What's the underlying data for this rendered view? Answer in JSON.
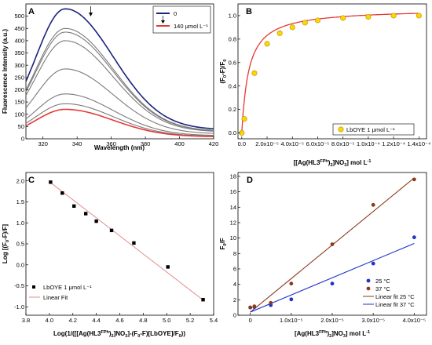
{
  "chart_data": [
    {
      "panel": "A",
      "type": "line",
      "xlabel": "Wavelength (nm)",
      "ylabel": "Fluorescence Intensity (a.u.)",
      "xlim": [
        310,
        420
      ],
      "ylim": [
        0,
        550
      ],
      "xticks": [
        320,
        340,
        360,
        380,
        400,
        420
      ],
      "yticks": [
        0,
        50,
        100,
        150,
        200,
        250,
        300,
        350,
        400,
        450,
        500
      ],
      "legend": [
        "0",
        "140 μmol L⁻¹"
      ],
      "legend_position": "top-right",
      "colors": {
        "first": "#1a237e",
        "last": "#e53935",
        "middle": "#7a7a7a"
      },
      "peak_wavelength": 333,
      "series": [
        {
          "name": "0",
          "peak": 530,
          "color": "#1a237e"
        },
        {
          "peak": 450,
          "color": "#7a7a7a"
        },
        {
          "peak": 435,
          "color": "#7a7a7a"
        },
        {
          "peak": 400,
          "color": "#7a7a7a"
        },
        {
          "peak": 285,
          "color": "#7a7a7a"
        },
        {
          "peak": 183,
          "color": "#7a7a7a"
        },
        {
          "peak": 143,
          "color": "#7a7a7a"
        },
        {
          "name": "140 μmol L⁻¹",
          "peak": 120,
          "color": "#e53935"
        }
      ]
    },
    {
      "panel": "B",
      "type": "scatter",
      "xlabel": "[[Ag(HL3FPh)2]NO3] mol L⁻¹",
      "ylabel": "(F0-F)/F0",
      "xlim": [
        0,
        0.00014
      ],
      "ylim": [
        -0.05,
        1.1
      ],
      "xticks": [
        "0.0",
        "2.0x10⁻⁵",
        "4.0x10⁻⁵",
        "6.0x10⁻⁵",
        "8.0x10⁻⁵",
        "1.0x10⁻⁴",
        "1.2x10⁻⁴",
        "1.4x10⁻⁴"
      ],
      "yticks": [
        "0.0",
        "0.2",
        "0.4",
        "0.6",
        "0.8",
        "1.0"
      ],
      "legend": [
        "LbOYE 1 μmol L⁻¹"
      ],
      "legend_position": "bottom-right",
      "points": {
        "x": [
          0,
          2e-06,
          1e-05,
          2e-05,
          3e-05,
          4e-05,
          5e-05,
          6e-05,
          8e-05,
          0.0001,
          0.00012,
          0.00014
        ],
        "y": [
          0.0,
          0.12,
          0.51,
          0.76,
          0.85,
          0.9,
          0.94,
          0.96,
          0.98,
          0.99,
          1.0,
          1.0
        ]
      },
      "fit": {
        "fmax": 1.06,
        "k": 5.5e-06
      },
      "colors": {
        "points": "#ffd700",
        "fit": "#e53935"
      }
    },
    {
      "panel": "C",
      "type": "scatter",
      "xlabel": "Log(1/([[Ag(HL3FPh)2]NO3]-(F0-F)[LbOYE]/F0))",
      "ylabel": "Log [(F0-F)/F]",
      "xlim": [
        3.8,
        5.4
      ],
      "ylim": [
        -1.2,
        2.2
      ],
      "xticks": [
        "3.8",
        "4.0",
        "4.2",
        "4.4",
        "4.6",
        "4.8",
        "5.0",
        "5.2",
        "5.4"
      ],
      "yticks": [
        "-1.0",
        "-0.5",
        "0.0",
        "0.5",
        "1.0",
        "1.5",
        "2.0"
      ],
      "legend": [
        "LbOYE 1 μmol L⁻¹",
        "Linear Fit"
      ],
      "legend_position": "bottom-left",
      "points": {
        "x": [
          4.01,
          4.11,
          4.21,
          4.31,
          4.4,
          4.53,
          4.72,
          5.01,
          5.31
        ],
        "y": [
          1.97,
          1.71,
          1.4,
          1.22,
          1.04,
          0.82,
          0.52,
          -0.05,
          -0.83
        ]
      },
      "fit": {
        "x": [
          4.01,
          5.31
        ],
        "y": [
          1.96,
          -0.84
        ]
      },
      "colors": {
        "points": "#000000",
        "fit": "#e08080"
      }
    },
    {
      "panel": "D",
      "type": "scatter",
      "xlabel": "[Ag(HL3FPh)2]NO3] mol L⁻¹",
      "ylabel": "F0/F",
      "xlim": [
        -3e-06,
        4.3e-05
      ],
      "ylim": [
        0,
        18.5
      ],
      "xticks": [
        "0",
        "1.0x10⁻⁵",
        "2.0x10⁻⁵",
        "3.0x10⁻⁵",
        "4.0x10⁻⁵"
      ],
      "yticks": [
        "0",
        "2",
        "4",
        "6",
        "8",
        "10",
        "12",
        "14",
        "16",
        "18"
      ],
      "legend": [
        "25 °C",
        "37 °C",
        "Linear fit 25 °C",
        "Linear fit 37 °C"
      ],
      "legend_position": "bottom-right",
      "series": [
        {
          "name": "25 °C",
          "x": [
            0,
            1e-06,
            5e-06,
            1e-05,
            2e-05,
            3e-05,
            4e-05
          ],
          "y": [
            1.0,
            1.05,
            1.3,
            2.05,
            4.1,
            6.7,
            10.1
          ],
          "color": "#1f33c8"
        },
        {
          "name": "37 °C",
          "x": [
            0,
            1e-06,
            5e-06,
            1e-05,
            2e-05,
            3e-05,
            4e-05
          ],
          "y": [
            1.0,
            1.15,
            1.6,
            4.1,
            9.2,
            14.3,
            17.6
          ],
          "color": "#8b3a1a"
        },
        {
          "name": "Linear fit 25 °C",
          "line": [
            [
              0,
              0.4
            ],
            [
              4e-05,
              17.8
            ]
          ],
          "color": "#8b3a1a"
        },
        {
          "name": "Linear fit 37 °C",
          "line": [
            [
              0,
              0.4
            ],
            [
              4e-05,
              9.3
            ]
          ],
          "color": "#1f33c8"
        }
      ]
    }
  ]
}
